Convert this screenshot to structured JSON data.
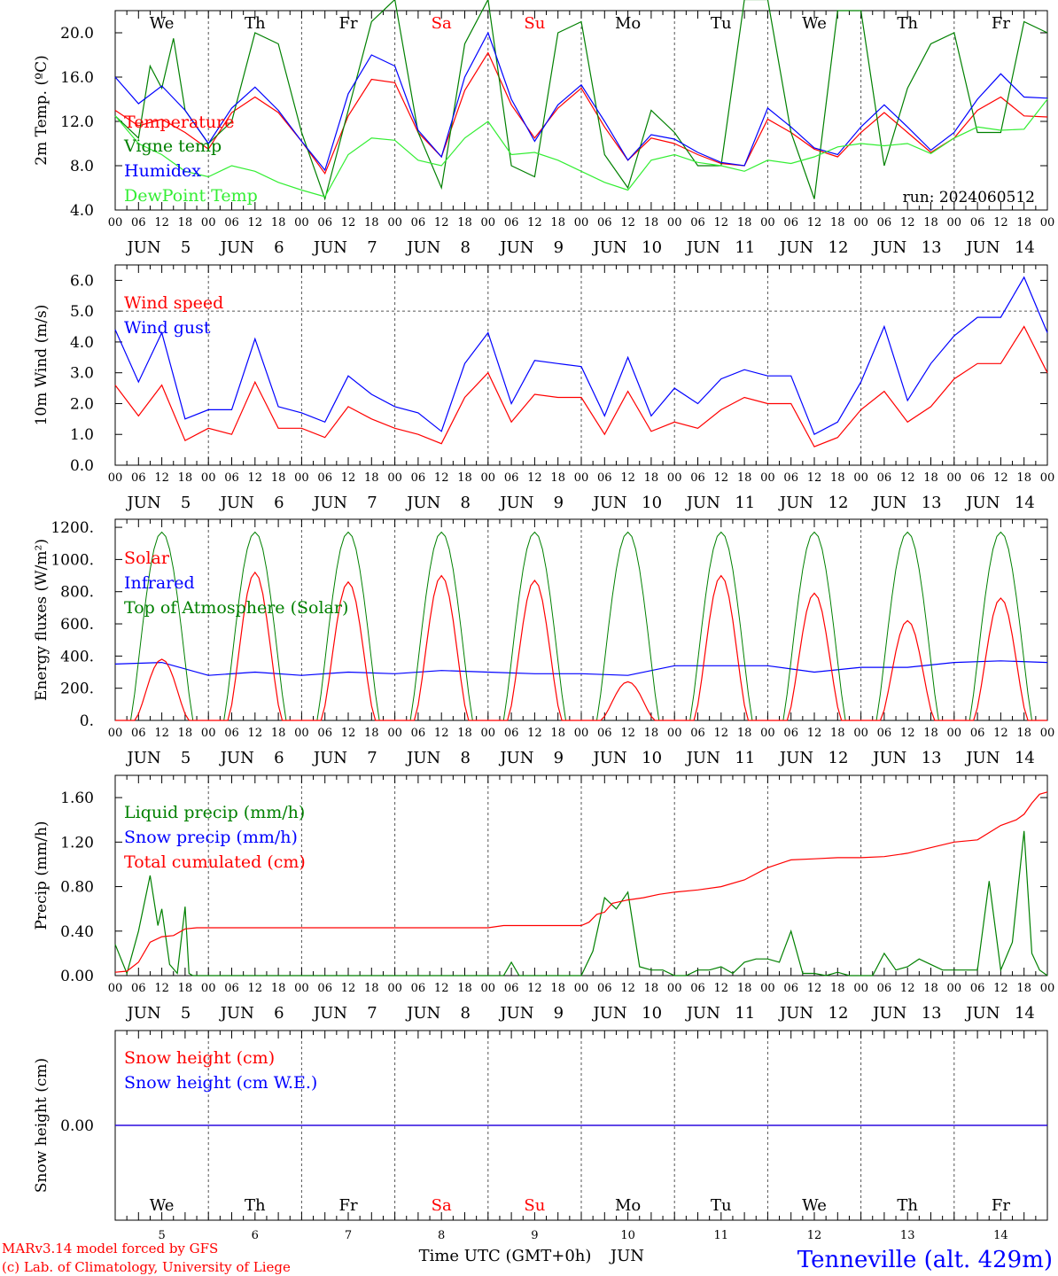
{
  "run_label": "run: 2024060512",
  "weekdays": [
    {
      "label": "We",
      "color": "#000000"
    },
    {
      "label": "Th",
      "color": "#000000"
    },
    {
      "label": "Fr",
      "color": "#000000"
    },
    {
      "label": "Sa",
      "color": "#ff0000"
    },
    {
      "label": "Su",
      "color": "#ff0000"
    },
    {
      "label": "Mo",
      "color": "#000000"
    },
    {
      "label": "Tu",
      "color": "#000000"
    },
    {
      "label": "We",
      "color": "#000000"
    },
    {
      "label": "Th",
      "color": "#000000"
    },
    {
      "label": "Fr",
      "color": "#000000"
    }
  ],
  "day_axis": {
    "month": "JUN",
    "days": [
      "5",
      "6",
      "7",
      "8",
      "9",
      "10",
      "11",
      "12",
      "13",
      "14"
    ],
    "hour_labels": [
      "00",
      "06",
      "12",
      "18"
    ],
    "final_hour": "00"
  },
  "footer": {
    "xlabel": "Time UTC (GMT+0h)",
    "month": "JUN",
    "credit1": "MARv3.14 model forced by GFS",
    "credit2": "(c) Lab. of Climatology, University of Liege",
    "station": "Tenneville (alt. 429m)"
  },
  "colors": {
    "red": "#ff0000",
    "green": "#008000",
    "blue": "#0000ff",
    "lightgreen": "#33ee33",
    "purple": "#800080"
  },
  "chart_data": [
    {
      "type": "line",
      "ylabel": "2m Temp. (ºC)",
      "ylim": [
        4,
        22
      ],
      "yticks": [
        4.0,
        8.0,
        12.0,
        16.0,
        20.0
      ],
      "ytick_labels": [
        "4.0",
        "8.0",
        "12.0",
        "16.0",
        "20.0"
      ],
      "x_unit": "hours since 5 Jun 00 UTC",
      "series": [
        {
          "name": "Temperature",
          "color": "#ff0000",
          "x": [
            0,
            6,
            12,
            18,
            24,
            30,
            36,
            42,
            48,
            54,
            60,
            66,
            72,
            78,
            84,
            90,
            96,
            102,
            108,
            114,
            120,
            126,
            132,
            138,
            144,
            150,
            156,
            162,
            168,
            174,
            180,
            186,
            192,
            198,
            204,
            210,
            216,
            222,
            228,
            234,
            240
          ],
          "values": [
            13,
            11.6,
            12.2,
            11,
            9.5,
            12.8,
            14.2,
            12.8,
            10.2,
            7.3,
            12.5,
            15.8,
            15.5,
            11,
            8.8,
            14.8,
            18.2,
            13.5,
            10.5,
            13.2,
            15,
            11.5,
            8.5,
            10.5,
            10,
            9,
            8.2,
            8,
            12.2,
            11,
            9.5,
            8.8,
            11,
            12.8,
            11,
            9.2,
            10.5,
            13,
            14.2,
            12.5,
            12.4
          ]
        },
        {
          "name": "Vigne temp",
          "color": "#008000",
          "x": [
            0,
            6,
            9,
            12,
            15,
            18,
            24,
            30,
            36,
            42,
            48,
            54,
            60,
            66,
            72,
            78,
            84,
            90,
            96,
            102,
            108,
            114,
            120,
            126,
            132,
            138,
            144,
            150,
            156,
            162,
            168,
            174,
            180,
            186,
            192,
            198,
            204,
            210,
            216,
            222,
            228,
            234,
            240
          ],
          "values": [
            12.5,
            10.5,
            17,
            15,
            19.5,
            13,
            10,
            12,
            20,
            19,
            11,
            5,
            13,
            21,
            23,
            11,
            6,
            19,
            23,
            8,
            7,
            20,
            21,
            9,
            6,
            13,
            11,
            8,
            8,
            23,
            23,
            11,
            5,
            22,
            22,
            8,
            15,
            19,
            20,
            11,
            11,
            21,
            20
          ]
        },
        {
          "name": "Humidex",
          "color": "#0000ff",
          "x": [
            0,
            6,
            12,
            18,
            24,
            30,
            36,
            42,
            48,
            54,
            60,
            66,
            72,
            78,
            84,
            90,
            96,
            102,
            108,
            114,
            120,
            126,
            132,
            138,
            144,
            150,
            156,
            162,
            168,
            174,
            180,
            186,
            192,
            198,
            204,
            210,
            216,
            222,
            228,
            234,
            240
          ],
          "values": [
            16,
            13.6,
            15.2,
            13,
            10,
            13.2,
            15.1,
            13,
            10.2,
            7.6,
            14.5,
            18,
            17,
            11.2,
            8.8,
            16,
            20,
            14,
            10.2,
            13.5,
            15.3,
            12,
            8.5,
            10.8,
            10.4,
            9.2,
            8.3,
            8,
            13.2,
            11.5,
            9.6,
            9,
            11.5,
            13.5,
            11.5,
            9.4,
            11,
            14,
            16.3,
            14.2,
            14.1
          ]
        },
        {
          "name": "DewPoint Temp",
          "color": "#33ee33",
          "x": [
            0,
            6,
            12,
            18,
            24,
            30,
            36,
            42,
            48,
            54,
            60,
            66,
            72,
            78,
            84,
            90,
            96,
            102,
            108,
            114,
            120,
            126,
            132,
            138,
            144,
            150,
            156,
            162,
            168,
            174,
            180,
            186,
            192,
            198,
            204,
            210,
            216,
            222,
            228,
            234,
            240
          ],
          "values": [
            12.5,
            10,
            9,
            7.5,
            7,
            8,
            7.5,
            6.5,
            5.8,
            5.2,
            9,
            10.5,
            10.3,
            8.5,
            8,
            10.5,
            12,
            9,
            9.2,
            8.5,
            7.5,
            6.5,
            5.8,
            8.5,
            9,
            8.3,
            8,
            7.5,
            8.5,
            8.2,
            8.8,
            9.7,
            10,
            9.8,
            10,
            9.1,
            10.5,
            11.5,
            11.2,
            11.3,
            14
          ]
        }
      ]
    },
    {
      "type": "line",
      "ylabel": "10m Wind (m/s)",
      "ylim": [
        0,
        6.5
      ],
      "yticks": [
        0,
        1,
        2,
        3,
        4,
        5,
        6
      ],
      "ytick_labels": [
        "0.0",
        "1.0",
        "2.0",
        "3.0",
        "4.0",
        "5.0",
        "6.0"
      ],
      "x_unit": "hours since 5 Jun 00 UTC",
      "series": [
        {
          "name": "Wind speed",
          "color": "#ff0000",
          "x": [
            0,
            6,
            12,
            18,
            24,
            30,
            36,
            42,
            48,
            54,
            60,
            66,
            72,
            78,
            84,
            90,
            96,
            102,
            108,
            114,
            120,
            126,
            132,
            138,
            144,
            150,
            156,
            162,
            168,
            174,
            180,
            186,
            192,
            198,
            204,
            210,
            216,
            222,
            228,
            234,
            240
          ],
          "values": [
            2.6,
            1.6,
            2.6,
            0.8,
            1.2,
            1.0,
            2.7,
            1.2,
            1.2,
            0.9,
            1.9,
            1.5,
            1.2,
            1.0,
            0.7,
            2.2,
            3.0,
            1.4,
            2.3,
            2.2,
            2.2,
            1.0,
            2.4,
            1.1,
            1.4,
            1.2,
            1.8,
            2.2,
            2.0,
            2.0,
            0.6,
            0.9,
            1.8,
            2.4,
            1.4,
            1.9,
            2.8,
            3.3,
            3.3,
            4.5,
            3.0
          ]
        },
        {
          "name": "Wind gust",
          "color": "#0000ff",
          "x": [
            0,
            6,
            12,
            18,
            24,
            30,
            36,
            42,
            48,
            54,
            60,
            66,
            72,
            78,
            84,
            90,
            96,
            102,
            108,
            114,
            120,
            126,
            132,
            138,
            144,
            150,
            156,
            162,
            168,
            174,
            180,
            186,
            192,
            198,
            204,
            210,
            216,
            222,
            228,
            234,
            240
          ],
          "values": [
            4.4,
            2.7,
            4.3,
            1.5,
            1.8,
            1.8,
            4.1,
            1.9,
            1.7,
            1.4,
            2.9,
            2.3,
            1.9,
            1.7,
            1.1,
            3.3,
            4.3,
            2.0,
            3.4,
            3.3,
            3.2,
            1.6,
            3.5,
            1.6,
            2.5,
            2.0,
            2.8,
            3.1,
            2.9,
            2.9,
            1.0,
            1.4,
            2.7,
            4.5,
            2.1,
            3.3,
            4.2,
            4.8,
            4.8,
            6.1,
            4.3
          ]
        }
      ]
    },
    {
      "type": "line",
      "ylabel": "Energy fluxes (W/m²)",
      "ylim": [
        0,
        1250
      ],
      "yticks": [
        0,
        200,
        400,
        600,
        800,
        1000,
        1200
      ],
      "ytick_labels": [
        "0.",
        "200.",
        "400.",
        "600.",
        "800.",
        "1000.",
        "1200."
      ],
      "x_unit": "hours since 5 Jun 00 UTC",
      "toa_peak": 1170,
      "series": [
        {
          "name": "Solar",
          "color": "#ff0000",
          "day_peaks": [
            380,
            920,
            860,
            900,
            870,
            240,
            900,
            790,
            620,
            760
          ]
        },
        {
          "name": "Infrared",
          "color": "#0000ff",
          "x": [
            0,
            12,
            24,
            36,
            48,
            60,
            72,
            84,
            96,
            108,
            120,
            132,
            144,
            156,
            168,
            180,
            192,
            204,
            216,
            228,
            240
          ],
          "values": [
            350,
            360,
            280,
            300,
            280,
            300,
            290,
            310,
            300,
            290,
            290,
            280,
            340,
            340,
            340,
            300,
            330,
            330,
            360,
            370,
            360
          ]
        },
        {
          "name": "Top of Atmosphere (Solar)",
          "color": "#008000"
        }
      ]
    },
    {
      "type": "line",
      "ylabel": "Precip (mm/h)",
      "ylim": [
        0,
        1.8
      ],
      "yticks": [
        0,
        0.4,
        0.8,
        1.2,
        1.6
      ],
      "ytick_labels": [
        "0.00",
        "0.40",
        "0.80",
        "1.20",
        "1.60"
      ],
      "x_unit": "hours since 5 Jun 00 UTC",
      "series": [
        {
          "name": "Liquid precip (mm/h)",
          "color": "#008000",
          "x": [
            0,
            3,
            6,
            9,
            11,
            12,
            14,
            16,
            18,
            19,
            20,
            22,
            24,
            100,
            102,
            104,
            120,
            123,
            126,
            129,
            132,
            135,
            138,
            141,
            144,
            147,
            150,
            153,
            156,
            159,
            162,
            165,
            168,
            171,
            174,
            177,
            180,
            183,
            186,
            189,
            192,
            195,
            198,
            201,
            204,
            207,
            210,
            213,
            216,
            219,
            222,
            225,
            228,
            231,
            234,
            236,
            238,
            240
          ],
          "values": [
            0.28,
            0.02,
            0.4,
            0.9,
            0.45,
            0.6,
            0.1,
            0.02,
            0.62,
            0.02,
            0.0,
            0.0,
            0.0,
            0.0,
            0.12,
            0.0,
            0.0,
            0.22,
            0.7,
            0.6,
            0.75,
            0.08,
            0.05,
            0.05,
            0.0,
            0.0,
            0.05,
            0.05,
            0.08,
            0.02,
            0.12,
            0.15,
            0.15,
            0.12,
            0.4,
            0.02,
            0.02,
            0.0,
            0.03,
            0.0,
            0.0,
            0.0,
            0.2,
            0.05,
            0.08,
            0.15,
            0.1,
            0.05,
            0.05,
            0.05,
            0.05,
            0.85,
            0.05,
            0.3,
            1.3,
            0.2,
            0.05,
            0.0
          ]
        },
        {
          "name": "Snow precip (mm/h)",
          "color": "#0000ff"
        },
        {
          "name": "Total cumulated (cm)",
          "color": "#ff0000",
          "x": [
            0,
            3,
            6,
            9,
            12,
            15,
            18,
            21,
            24,
            60,
            96,
            100,
            104,
            120,
            122,
            124,
            126,
            128,
            132,
            136,
            140,
            144,
            150,
            156,
            162,
            168,
            174,
            180,
            186,
            192,
            198,
            204,
            210,
            216,
            222,
            228,
            232,
            234,
            236,
            238,
            240
          ],
          "values": [
            0.03,
            0.04,
            0.12,
            0.3,
            0.35,
            0.36,
            0.42,
            0.43,
            0.43,
            0.43,
            0.43,
            0.45,
            0.45,
            0.45,
            0.48,
            0.55,
            0.57,
            0.65,
            0.68,
            0.7,
            0.73,
            0.75,
            0.77,
            0.8,
            0.86,
            0.97,
            1.04,
            1.05,
            1.06,
            1.06,
            1.07,
            1.1,
            1.15,
            1.2,
            1.22,
            1.35,
            1.4,
            1.45,
            1.55,
            1.63,
            1.65
          ]
        }
      ]
    },
    {
      "type": "line",
      "ylabel": "Snow height (cm)",
      "ylim": [
        -1,
        1
      ],
      "yticks": [
        0
      ],
      "ytick_labels": [
        "0.00"
      ],
      "x_unit": "hours since 5 Jun 00 UTC",
      "series": [
        {
          "name": "Snow height (cm)",
          "color": "#ff0000",
          "x": [
            0,
            240
          ],
          "values": [
            0,
            0
          ]
        },
        {
          "name": "Snow height (cm W.E.)",
          "color": "#0000ff",
          "x": [
            0,
            240
          ],
          "values": [
            0,
            0
          ]
        }
      ]
    }
  ]
}
